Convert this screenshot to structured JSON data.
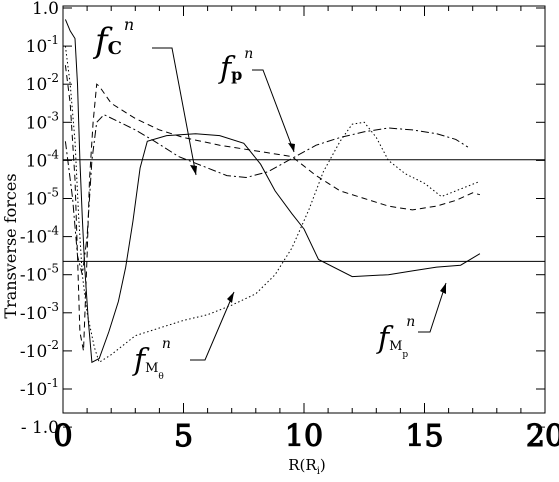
{
  "chart_data": {
    "type": "line",
    "title": "",
    "xlabel": "R(R_i)",
    "ylabel": "Transverse forces",
    "xlim": [
      0,
      20
    ],
    "x_ticks": [
      0,
      5,
      10,
      15,
      20
    ],
    "y_tick_labels": [
      {
        "band": 0,
        "label": "1.0"
      },
      {
        "band": 1,
        "label": "10^-1"
      },
      {
        "band": 2,
        "label": "10^-2"
      },
      {
        "band": 3,
        "label": "10^-3"
      },
      {
        "band": 4,
        "label": "10^-4"
      },
      {
        "band": 5,
        "label": "10^-5"
      },
      {
        "band": 6,
        "label": "-10^-4"
      },
      {
        "band": 7,
        "label": "-10^-5"
      },
      {
        "band": 8,
        "label": "-10^-3"
      },
      {
        "band": 9,
        "label": "-10^-2"
      },
      {
        "band": 10,
        "label": "-10^-1"
      },
      {
        "band": 11,
        "label": "-1.0"
      }
    ],
    "yscale": "piecewise symmetric log (1.0 … 10^-4 positive, 10^-5 to -10^-5 linear, -10^-5 … -1.0 negative)",
    "y_band_range": [
      0,
      11
    ],
    "grid": false,
    "series": [
      {
        "label": "f_C^n",
        "style": "solid",
        "points": [
          [
            0.1,
            0.3
          ],
          [
            0.3,
            0.6
          ],
          [
            0.5,
            0.8
          ],
          [
            0.6,
            2.0
          ],
          [
            0.7,
            4.0
          ],
          [
            0.8,
            5.5
          ],
          [
            0.9,
            6.8
          ],
          [
            1.05,
            8.2
          ],
          [
            1.2,
            9.3
          ],
          [
            1.5,
            9.2
          ],
          [
            1.9,
            8.5
          ],
          [
            2.3,
            7.7
          ],
          [
            2.6,
            6.8
          ],
          [
            2.9,
            5.6
          ],
          [
            3.2,
            4.2
          ],
          [
            3.5,
            3.5
          ],
          [
            4.3,
            3.35
          ],
          [
            5.5,
            3.3
          ],
          [
            6.5,
            3.35
          ],
          [
            7.5,
            3.55
          ],
          [
            8.2,
            4.1
          ],
          [
            8.8,
            4.8
          ],
          [
            9.5,
            5.4
          ],
          [
            10.0,
            5.8
          ],
          [
            10.6,
            6.6
          ],
          [
            12.0,
            7.05
          ],
          [
            13.5,
            7.0
          ],
          [
            14.5,
            6.9
          ],
          [
            15.5,
            6.8
          ],
          [
            16.5,
            6.75
          ],
          [
            17.3,
            6.45
          ]
        ]
      },
      {
        "label": "f_p^n",
        "style": "dashed",
        "points": [
          [
            0.1,
            1.5
          ],
          [
            0.3,
            2.5
          ],
          [
            0.5,
            4.5
          ],
          [
            0.6,
            6.5
          ],
          [
            0.7,
            8.5
          ],
          [
            0.85,
            9.0
          ],
          [
            1.0,
            6.5
          ],
          [
            1.1,
            4.5
          ],
          [
            1.25,
            3.0
          ],
          [
            1.4,
            2.0
          ],
          [
            1.5,
            2.05
          ],
          [
            2.0,
            2.5
          ],
          [
            3.0,
            2.9
          ],
          [
            4.0,
            3.2
          ],
          [
            5.0,
            3.4
          ],
          [
            6.5,
            3.6
          ],
          [
            7.5,
            3.7
          ],
          [
            8.5,
            3.8
          ],
          [
            9.5,
            3.9
          ],
          [
            10.5,
            4.4
          ],
          [
            11.5,
            4.8
          ],
          [
            12.5,
            5.0
          ],
          [
            13.5,
            5.2
          ],
          [
            14.5,
            5.3
          ],
          [
            15.5,
            5.2
          ],
          [
            16.3,
            5.05
          ],
          [
            17.0,
            4.85
          ],
          [
            17.3,
            4.9
          ]
        ]
      },
      {
        "label": "f_M_theta^n",
        "style": "dotted",
        "points": [
          [
            0.1,
            1.0
          ],
          [
            0.3,
            2.0
          ],
          [
            0.5,
            3.5
          ],
          [
            0.65,
            5.5
          ],
          [
            0.8,
            7.0
          ],
          [
            1.0,
            8.0
          ],
          [
            1.3,
            8.9
          ],
          [
            1.5,
            9.3
          ],
          [
            2.0,
            9.1
          ],
          [
            3.0,
            8.6
          ],
          [
            4.0,
            8.4
          ],
          [
            5.0,
            8.2
          ],
          [
            6.0,
            8.05
          ],
          [
            7.0,
            7.8
          ],
          [
            8.0,
            7.5
          ],
          [
            8.8,
            7.0
          ],
          [
            9.5,
            6.3
          ],
          [
            10.2,
            5.3
          ],
          [
            10.8,
            4.3
          ],
          [
            11.5,
            3.5
          ],
          [
            12.0,
            3.05
          ],
          [
            12.5,
            3.0
          ],
          [
            13.0,
            3.4
          ],
          [
            13.5,
            4.0
          ],
          [
            14.2,
            4.35
          ],
          [
            15.0,
            4.6
          ],
          [
            15.7,
            4.95
          ],
          [
            16.5,
            4.75
          ],
          [
            17.3,
            4.55
          ]
        ]
      },
      {
        "label": "f_M_p^n",
        "style": "dashdot",
        "points": [
          [
            0.1,
            3.5
          ],
          [
            0.4,
            5.0
          ],
          [
            0.6,
            6.5
          ],
          [
            0.8,
            7.0
          ],
          [
            1.0,
            6.0
          ],
          [
            1.2,
            4.0
          ],
          [
            1.4,
            3.0
          ],
          [
            1.7,
            2.8
          ],
          [
            2.2,
            2.95
          ],
          [
            3.0,
            3.2
          ],
          [
            3.8,
            3.5
          ],
          [
            4.8,
            3.9
          ],
          [
            5.8,
            4.15
          ],
          [
            6.8,
            4.4
          ],
          [
            7.6,
            4.45
          ],
          [
            8.5,
            4.3
          ],
          [
            9.5,
            3.95
          ],
          [
            10.5,
            3.6
          ],
          [
            11.5,
            3.4
          ],
          [
            12.5,
            3.25
          ],
          [
            13.5,
            3.15
          ],
          [
            14.5,
            3.2
          ],
          [
            15.5,
            3.3
          ],
          [
            16.3,
            3.45
          ],
          [
            16.8,
            3.65
          ]
        ]
      }
    ],
    "annotations": [
      {
        "text": "f_C^n",
        "points_to_series": "f_C^n"
      },
      {
        "text": "f_p^n",
        "points_to_series": "f_p^n"
      },
      {
        "text": "f_M_theta^n",
        "points_to_series": "f_M_theta^n"
      },
      {
        "text": "f_M_p^n",
        "points_to_series": "f_M_p^n"
      }
    ]
  },
  "labels": {
    "ylabel": "Transverse forces",
    "xlabel_main": "R(R",
    "xlabel_sub": "i",
    "xlabel_close": ")",
    "x_ticks": [
      "0",
      "5",
      "10",
      "15",
      "20"
    ],
    "fC": {
      "f": "f",
      "sub": "C",
      "sup": "n"
    },
    "fp": {
      "f": "f",
      "sub": "p",
      "sup": "n"
    },
    "fMt": {
      "f": "f",
      "sub": "M",
      "subsub": "θ",
      "sup": "n"
    },
    "fMp": {
      "f": "f",
      "sub": "M",
      "subsub": "p",
      "sup": "n"
    }
  }
}
